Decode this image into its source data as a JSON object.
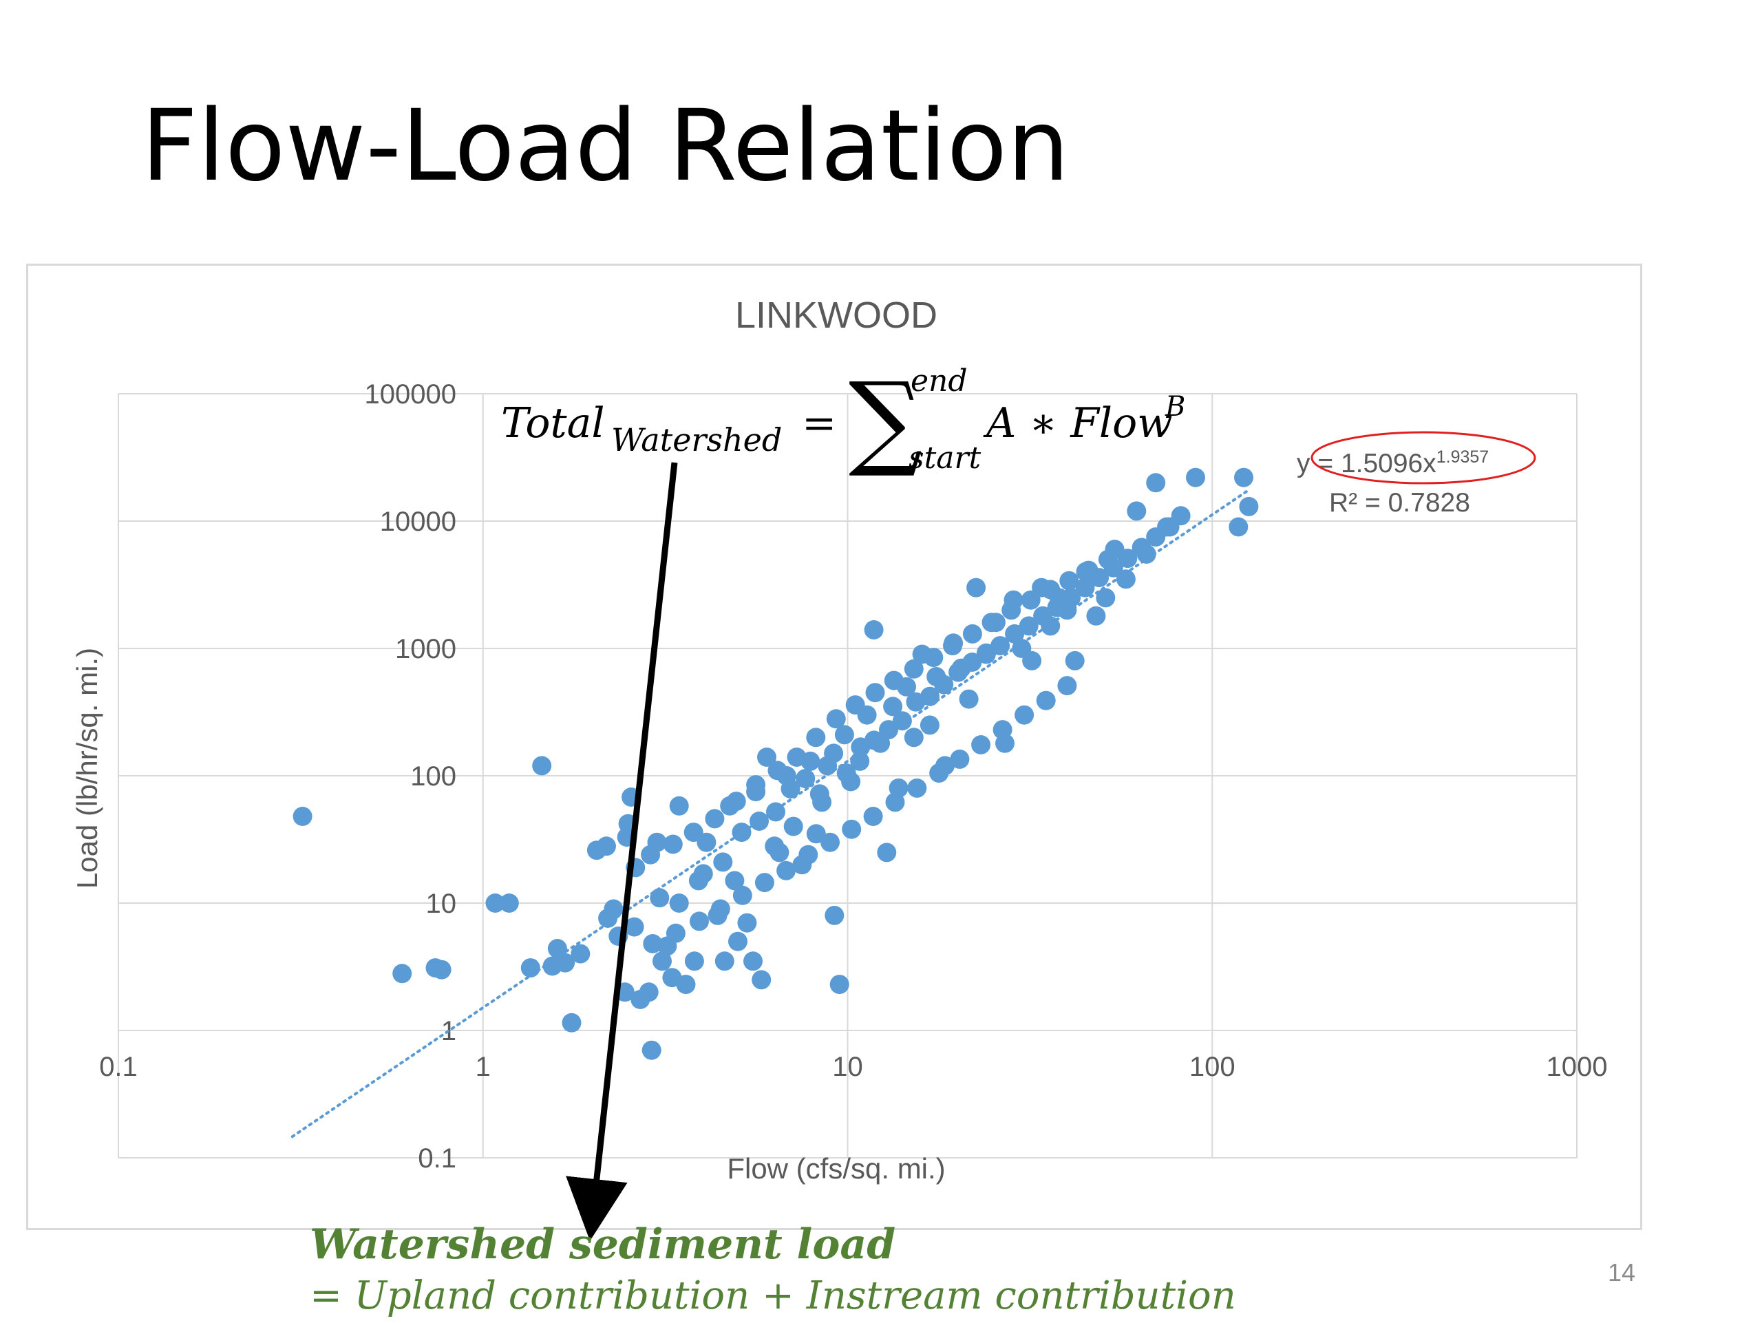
{
  "slide": {
    "title": "Flow-Load Relation",
    "page_number": "14"
  },
  "equations": {
    "sum_lhs": "Total",
    "sum_lhs_sub": "Watershed",
    "sum_eq": "=",
    "sum_symbol": "∑",
    "sum_upper": "end",
    "sum_lower": "start",
    "sum_rhs": "A ∗ Flow",
    "sum_rhs_sup": "B",
    "note_line1": "Watershed sediment load",
    "note_line2": "= Upland contribution + Instream contribution",
    "note_color": "#548235"
  },
  "colors": {
    "points": "#5b9bd5",
    "trendline": "#5b9bd5",
    "grid": "#d9d9d9",
    "axis_text": "#595959",
    "title_text": "#595959",
    "highlight_ellipse": "#e02020",
    "arrow": "#000000"
  },
  "chart_data": {
    "type": "scatter",
    "title": "LINKWOOD",
    "xlabel": "Flow (cfs/sq. mi.)",
    "ylabel": "Load (lb/hr/sq. mi.)",
    "x_scale": "log",
    "y_scale": "log",
    "xlim": [
      0.1,
      1000
    ],
    "ylim": [
      0.1,
      100000
    ],
    "x_ticks": [
      "0.1",
      "1",
      "10",
      "100",
      "1000"
    ],
    "y_ticks": [
      "0.1",
      "1",
      "10",
      "100",
      "1000",
      "10000",
      "100000"
    ],
    "grid": true,
    "trendline": {
      "type": "power",
      "coefficient": 1.5096,
      "exponent": 1.9357,
      "x_range": [
        0.3,
        125
      ],
      "equation_prefix": "y = 1.5096x",
      "equation_exponent": "1.9357",
      "r_squared_label": "R² = 0.7828"
    },
    "series": [
      {
        "points": [
          [
            0.32,
            48
          ],
          [
            0.6,
            2.8
          ],
          [
            0.74,
            3.1
          ],
          [
            0.77,
            3.0
          ],
          [
            1.08,
            10
          ],
          [
            1.18,
            10
          ],
          [
            1.35,
            3.1
          ],
          [
            1.45,
            120
          ],
          [
            1.55,
            3.2
          ],
          [
            1.6,
            4.4
          ],
          [
            1.68,
            3.4
          ],
          [
            1.75,
            1.15
          ],
          [
            1.85,
            4.0
          ],
          [
            2.05,
            26
          ],
          [
            2.2,
            7.6
          ],
          [
            2.35,
            5.5
          ],
          [
            2.45,
            2.0
          ],
          [
            2.5,
            42
          ],
          [
            2.55,
            68
          ],
          [
            2.6,
            6.5
          ],
          [
            2.7,
            1.75
          ],
          [
            2.85,
            2.0
          ],
          [
            2.9,
            0.7
          ],
          [
            3.0,
            30
          ],
          [
            3.1,
            3.5
          ],
          [
            3.2,
            4.6
          ],
          [
            3.3,
            2.6
          ],
          [
            3.45,
            58
          ],
          [
            3.6,
            2.3
          ],
          [
            3.8,
            3.5
          ],
          [
            3.9,
            15
          ],
          [
            4.1,
            30
          ],
          [
            4.4,
            8.0
          ],
          [
            4.6,
            3.5
          ],
          [
            4.75,
            58
          ],
          [
            4.9,
            15
          ],
          [
            5.0,
            5.0
          ],
          [
            5.3,
            7.0
          ],
          [
            5.5,
            3.5
          ],
          [
            5.6,
            75
          ],
          [
            5.8,
            2.5
          ],
          [
            6.0,
            140
          ],
          [
            6.3,
            28
          ],
          [
            6.5,
            25
          ],
          [
            6.8,
            100
          ],
          [
            7.1,
            40
          ],
          [
            7.5,
            20
          ],
          [
            7.9,
            130
          ],
          [
            8.2,
            35
          ],
          [
            8.5,
            62
          ],
          [
            8.8,
            120
          ],
          [
            9.2,
            8.0
          ],
          [
            9.5,
            2.3
          ],
          [
            9.8,
            210
          ],
          [
            10.2,
            90
          ],
          [
            10.8,
            130
          ],
          [
            11.3,
            300
          ],
          [
            11.8,
            1400
          ],
          [
            12.3,
            180
          ],
          [
            12.8,
            25
          ],
          [
            13.3,
            350
          ],
          [
            13.8,
            80
          ],
          [
            14.5,
            500
          ],
          [
            15.2,
            200
          ],
          [
            16.0,
            900
          ],
          [
            16.8,
            250
          ],
          [
            17.5,
            600
          ],
          [
            18.5,
            120
          ],
          [
            19.5,
            1100
          ],
          [
            20.5,
            700
          ],
          [
            21.5,
            400
          ],
          [
            22.5,
            3000
          ],
          [
            24.0,
            900
          ],
          [
            25.5,
            1600
          ],
          [
            27.0,
            180
          ],
          [
            28.5,
            2400
          ],
          [
            30.0,
            1000
          ],
          [
            32.0,
            800
          ],
          [
            34.0,
            3000
          ],
          [
            36.0,
            1500
          ],
          [
            38.0,
            2500
          ],
          [
            40.0,
            2000
          ],
          [
            42.0,
            800
          ],
          [
            45.0,
            4000
          ],
          [
            48.0,
            1800
          ],
          [
            51.0,
            2500
          ],
          [
            54.0,
            6000
          ],
          [
            58.0,
            3500
          ],
          [
            62.0,
            12000
          ],
          [
            66.0,
            5500
          ],
          [
            70.0,
            20000
          ],
          [
            75.0,
            9000
          ],
          [
            82.0,
            11000
          ],
          [
            90.0,
            22000
          ],
          [
            118.0,
            9000
          ],
          [
            122.0,
            22000
          ],
          [
            126.0,
            13000
          ],
          [
            2.28,
            9.0
          ],
          [
            2.62,
            19
          ],
          [
            3.05,
            11
          ],
          [
            3.45,
            10
          ],
          [
            4.02,
            17
          ],
          [
            4.55,
            21
          ],
          [
            5.12,
            36
          ],
          [
            5.72,
            44
          ],
          [
            6.35,
            52
          ],
          [
            6.97,
            79
          ],
          [
            7.66,
            95
          ],
          [
            8.38,
            72
          ],
          [
            9.15,
            150
          ],
          [
            9.92,
            105
          ],
          [
            10.85,
            168
          ],
          [
            11.82,
            190
          ],
          [
            12.95,
            230
          ],
          [
            14.12,
            270
          ],
          [
            15.38,
            380
          ],
          [
            16.82,
            420
          ],
          [
            18.35,
            520
          ],
          [
            20.1,
            650
          ],
          [
            21.95,
            780
          ],
          [
            24.0,
            920
          ],
          [
            26.2,
            1050
          ],
          [
            28.7,
            1300
          ],
          [
            31.4,
            1500
          ],
          [
            34.3,
            1800
          ],
          [
            37.5,
            2100
          ],
          [
            41.0,
            2500
          ],
          [
            44.8,
            3000
          ],
          [
            49.0,
            3600
          ],
          [
            53.6,
            4300
          ],
          [
            58.6,
            5100
          ],
          [
            64.0,
            6200
          ],
          [
            70.0,
            7500
          ],
          [
            76.5,
            9000
          ],
          [
            2.18,
            28
          ],
          [
            2.48,
            33
          ],
          [
            2.88,
            24
          ],
          [
            3.32,
            29
          ],
          [
            3.78,
            36
          ],
          [
            4.32,
            46
          ],
          [
            4.95,
            63
          ],
          [
            5.6,
            85
          ],
          [
            6.42,
            110
          ],
          [
            7.25,
            140
          ],
          [
            8.18,
            200
          ],
          [
            9.3,
            280
          ],
          [
            10.5,
            360
          ],
          [
            11.9,
            450
          ],
          [
            13.4,
            560
          ],
          [
            15.2,
            690
          ],
          [
            17.2,
            850
          ],
          [
            19.4,
            1050
          ],
          [
            22.0,
            1300
          ],
          [
            24.8,
            1600
          ],
          [
            28.1,
            2000
          ],
          [
            31.8,
            2400
          ],
          [
            36.0,
            2900
          ],
          [
            40.5,
            3400
          ],
          [
            45.8,
            4100
          ],
          [
            51.8,
            5000
          ],
          [
            2.92,
            4.8
          ],
          [
            3.38,
            5.8
          ],
          [
            3.92,
            7.2
          ],
          [
            4.48,
            9.0
          ],
          [
            5.15,
            11.5
          ],
          [
            5.92,
            14.5
          ],
          [
            6.78,
            18
          ],
          [
            7.8,
            24
          ],
          [
            8.95,
            30
          ],
          [
            10.25,
            38
          ],
          [
            11.75,
            48
          ],
          [
            13.5,
            62
          ],
          [
            15.5,
            80
          ],
          [
            17.8,
            105
          ],
          [
            20.3,
            135
          ],
          [
            23.2,
            175
          ],
          [
            26.6,
            230
          ],
          [
            30.5,
            300
          ],
          [
            35.0,
            390
          ],
          [
            40.0,
            510
          ]
        ]
      }
    ]
  }
}
